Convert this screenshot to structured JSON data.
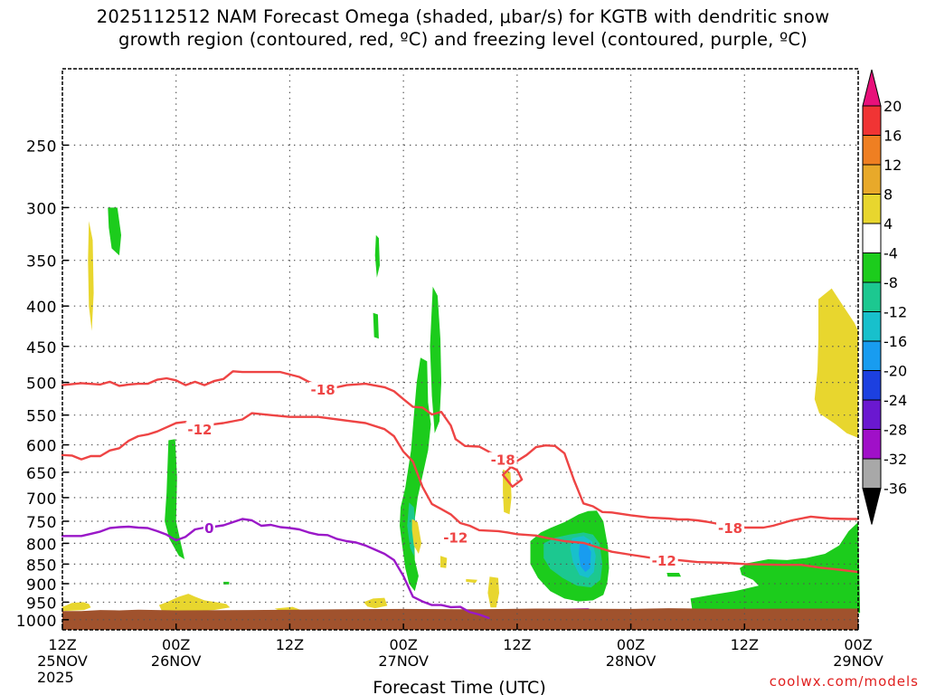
{
  "chart_data": {
    "type": "heatmap",
    "title": [
      "2025112512 NAM Forecast Omega (shaded, μbar/s) for KGTB with dendritic snow",
      "growth region (contoured, red, ºC) and freezing level (contoured, purple, ºC)"
    ],
    "xlabel": "Forecast Time (UTC)",
    "ylabel": "",
    "x_ticks": [
      {
        "hour": 0,
        "label": [
          "12Z",
          "25NOV",
          "2025"
        ]
      },
      {
        "hour": 12,
        "label": [
          "00Z",
          "26NOV"
        ]
      },
      {
        "hour": 24,
        "label": [
          "12Z"
        ]
      },
      {
        "hour": 36,
        "label": [
          "00Z",
          "27NOV"
        ]
      },
      {
        "hour": 48,
        "label": [
          "12Z"
        ]
      },
      {
        "hour": 60,
        "label": [
          "00Z",
          "28NOV"
        ]
      },
      {
        "hour": 72,
        "label": [
          "12Z"
        ]
      },
      {
        "hour": 84,
        "label": [
          "00Z",
          "29NOV"
        ]
      }
    ],
    "x_range_hours": [
      0,
      84
    ],
    "y_scale": "log-pressure (mb), inverted",
    "y_ticks": [
      250,
      300,
      350,
      400,
      450,
      500,
      550,
      600,
      650,
      700,
      750,
      800,
      850,
      900,
      950,
      1000
    ],
    "y_range": [
      200,
      1030
    ],
    "grid": true,
    "colorbar": {
      "levels": [
        "20",
        "16",
        "12",
        "8",
        "4",
        "-4",
        "-8",
        "-12",
        "-16",
        "-20",
        "-24",
        "-28",
        "-32",
        "-36"
      ],
      "colors": [
        "#e8107a",
        "#f03434",
        "#ef7f22",
        "#e8a92a",
        "#e8d62e",
        "#ffffff",
        "#1ccc1c",
        "#1cc890",
        "#18c0cc",
        "#189cf0",
        "#1c40e0",
        "#6a18d0",
        "#a010c8",
        "#a8a8a8",
        "#000000"
      ]
    },
    "contour_labels": [
      {
        "text": "-18",
        "color": "#ee4444",
        "hour": 27.5,
        "p": 510
      },
      {
        "text": "-12",
        "color": "#ee4444",
        "hour": 14.5,
        "p": 573
      },
      {
        "text": "-18",
        "color": "#ee4444",
        "hour": 46.5,
        "p": 626
      },
      {
        "text": "-12",
        "color": "#ee4444",
        "hour": 41.5,
        "p": 786
      },
      {
        "text": "-18",
        "color": "#ee4444",
        "hour": 70.5,
        "p": 764
      },
      {
        "text": "-12",
        "color": "#ee4444",
        "hour": 63.5,
        "p": 840
      },
      {
        "text": "0",
        "color": "#9a18c8",
        "hour": 15.5,
        "p": 764
      }
    ],
    "series": [
      {
        "color": "#ee4444",
        "points": [
          [
            0,
            504
          ],
          [
            2,
            501
          ],
          [
            4,
            503
          ],
          [
            5,
            499
          ],
          [
            6,
            505
          ],
          [
            7,
            503
          ],
          [
            8,
            502
          ],
          [
            9,
            502
          ],
          [
            10,
            496
          ],
          [
            11,
            494
          ],
          [
            12,
            497
          ],
          [
            13,
            504
          ],
          [
            14,
            499
          ],
          [
            15,
            504
          ],
          [
            16,
            498
          ],
          [
            17,
            495
          ],
          [
            18,
            484
          ],
          [
            19,
            485
          ],
          [
            21,
            485
          ],
          [
            23,
            485
          ],
          [
            25,
            492
          ],
          [
            26,
            499
          ],
          [
            28,
            510
          ],
          [
            30,
            504
          ],
          [
            32,
            502
          ],
          [
            34,
            507
          ],
          [
            35,
            513
          ],
          [
            36,
            525
          ],
          [
            37,
            537
          ],
          [
            38,
            538
          ],
          [
            39,
            549
          ],
          [
            40,
            545
          ],
          [
            41,
            567
          ],
          [
            41.5,
            590
          ]
        ]
      },
      {
        "color": "#ee4444",
        "points": [
          [
            41.5,
            590
          ],
          [
            42.5,
            602
          ],
          [
            44,
            603
          ],
          [
            45,
            612
          ],
          [
            46,
            620
          ],
          [
            47,
            637
          ],
          [
            48,
            646
          ],
          [
            48.5,
            664
          ],
          [
            47.5,
            678
          ],
          [
            46.5,
            655
          ],
          [
            48,
            629
          ],
          [
            49,
            618
          ],
          [
            50,
            604
          ],
          [
            51,
            601
          ],
          [
            52,
            602
          ],
          [
            53,
            615
          ],
          [
            54,
            665
          ],
          [
            55,
            712
          ],
          [
            56,
            718
          ],
          [
            57,
            730
          ],
          [
            58,
            731
          ],
          [
            60,
            737
          ],
          [
            62,
            742
          ],
          [
            64,
            744
          ],
          [
            65,
            746
          ],
          [
            66,
            746
          ],
          [
            67,
            748
          ],
          [
            68,
            751
          ],
          [
            69,
            755
          ],
          [
            70,
            760
          ],
          [
            72,
            764
          ],
          [
            74,
            764
          ],
          [
            75,
            760
          ],
          [
            77,
            748
          ],
          [
            79,
            740
          ],
          [
            81,
            744
          ],
          [
            83,
            745
          ],
          [
            84,
            745
          ]
        ]
      },
      {
        "color": "#ee4444",
        "points": [
          [
            0,
            618
          ],
          [
            1,
            619
          ],
          [
            2,
            626
          ],
          [
            3,
            620
          ],
          [
            4,
            620
          ],
          [
            5,
            610
          ],
          [
            6,
            606
          ],
          [
            7,
            593
          ],
          [
            8,
            585
          ],
          [
            9,
            582
          ],
          [
            10,
            577
          ],
          [
            11,
            570
          ],
          [
            12,
            563
          ],
          [
            13,
            561
          ],
          [
            14,
            575
          ],
          [
            15,
            574
          ],
          [
            16,
            565
          ],
          [
            17,
            563
          ],
          [
            18,
            560
          ],
          [
            19,
            557
          ],
          [
            20,
            547
          ],
          [
            22,
            550
          ],
          [
            24,
            553
          ],
          [
            27,
            553
          ],
          [
            30,
            559
          ],
          [
            32,
            563
          ],
          [
            34,
            573
          ],
          [
            35,
            585
          ],
          [
            36,
            612
          ],
          [
            37,
            630
          ],
          [
            38,
            678
          ],
          [
            39,
            713
          ],
          [
            40,
            724
          ],
          [
            41,
            735
          ],
          [
            42,
            754
          ],
          [
            43,
            760
          ],
          [
            44,
            770
          ],
          [
            46,
            772
          ],
          [
            47,
            775
          ],
          [
            48,
            779
          ],
          [
            50,
            782
          ],
          [
            51,
            787
          ],
          [
            53,
            795
          ],
          [
            55,
            799
          ],
          [
            57,
            813
          ],
          [
            58,
            820
          ],
          [
            60,
            827
          ],
          [
            62,
            834
          ],
          [
            64,
            841
          ],
          [
            65,
            840
          ],
          [
            67,
            845
          ],
          [
            70,
            847
          ],
          [
            72,
            850
          ],
          [
            74,
            851
          ],
          [
            76,
            852
          ],
          [
            78,
            852
          ],
          [
            80,
            859
          ],
          [
            82,
            864
          ],
          [
            84,
            870
          ]
        ]
      },
      {
        "color": "#9a18c8",
        "points": [
          [
            0,
            783
          ],
          [
            2,
            783
          ],
          [
            3,
            778
          ],
          [
            4,
            773
          ],
          [
            5,
            765
          ],
          [
            6,
            763
          ],
          [
            7,
            762
          ],
          [
            8,
            764
          ],
          [
            9,
            765
          ],
          [
            10,
            772
          ],
          [
            11,
            780
          ],
          [
            12,
            793
          ],
          [
            13,
            785
          ],
          [
            14,
            768
          ],
          [
            15,
            764
          ],
          [
            16,
            762
          ],
          [
            17,
            759
          ],
          [
            18,
            752
          ],
          [
            19,
            745
          ],
          [
            20,
            748
          ],
          [
            21,
            760
          ],
          [
            22,
            758
          ],
          [
            23,
            763
          ],
          [
            24,
            765
          ],
          [
            25,
            768
          ],
          [
            26,
            775
          ],
          [
            27,
            780
          ],
          [
            28,
            781
          ],
          [
            29,
            790
          ],
          [
            30,
            795
          ],
          [
            31,
            798
          ],
          [
            32,
            805
          ],
          [
            33,
            815
          ],
          [
            34,
            825
          ],
          [
            35,
            840
          ],
          [
            36,
            880
          ],
          [
            37,
            935
          ],
          [
            38,
            948
          ],
          [
            39,
            958
          ],
          [
            40,
            958
          ],
          [
            41,
            964
          ],
          [
            42,
            963
          ],
          [
            43,
            978
          ],
          [
            44,
            985
          ],
          [
            45,
            995
          ]
        ]
      }
    ]
  },
  "credit": "coolwx.com/models"
}
